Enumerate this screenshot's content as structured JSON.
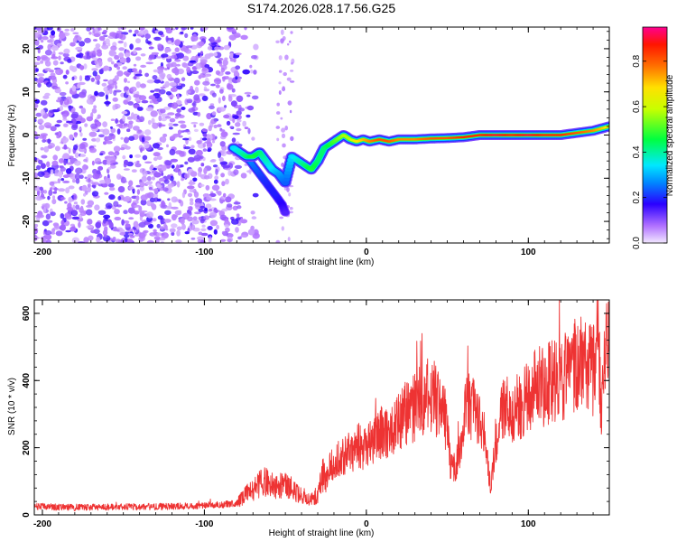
{
  "title": "S174.2026.028.17.56.G25",
  "chart_data": [
    {
      "type": "heatmap",
      "title": "S174.2026.028.17.56.G25",
      "xlabel": "Height of straight line (km)",
      "ylabel": "Frequency (Hz)",
      "xlim": [
        -205,
        150
      ],
      "ylim": [
        -25,
        25
      ],
      "xticks": [
        -200,
        -100,
        0,
        100
      ],
      "xtick_labels": [
        "-200",
        "-100",
        "0",
        "100"
      ],
      "yticks": [
        -20,
        -10,
        0,
        10,
        20
      ],
      "ytick_labels": [
        "-20",
        "-10",
        "0",
        "10",
        "20"
      ],
      "colorbar": {
        "label": "Normalized spectral amplitude",
        "range": [
          0.0,
          0.95
        ],
        "ticks": [
          0.0,
          0.2,
          0.4,
          0.6,
          0.8
        ],
        "tick_labels": [
          "0.0",
          "0.2",
          "0.4",
          "0.6",
          "0.8"
        ]
      },
      "noise_region_km": [
        -205,
        -78
      ],
      "signal_trace": {
        "x": [
          -82,
          -78,
          -74,
          -70,
          -66,
          -62,
          -58,
          -54,
          -50,
          -46,
          -42,
          -38,
          -34,
          -30,
          -26,
          -22,
          -18,
          -14,
          -10,
          -6,
          -2,
          2,
          8,
          14,
          20,
          30,
          40,
          50,
          60,
          70,
          80,
          90,
          100,
          110,
          120,
          130,
          140,
          150
        ],
        "y": [
          -3,
          -4,
          -5,
          -5,
          -4,
          -6,
          -8,
          -9,
          -11,
          -5,
          -6,
          -7,
          -8,
          -6,
          -3,
          -2,
          -1,
          0,
          -1,
          -1.5,
          -1,
          -1.5,
          -1,
          -1.5,
          -1,
          -1,
          -0.8,
          -0.7,
          -0.5,
          0,
          0,
          0,
          0,
          0,
          0,
          0.5,
          1,
          2
        ],
        "amplitude": [
          0.35,
          0.4,
          0.45,
          0.5,
          0.45,
          0.4,
          0.35,
          0.3,
          0.25,
          0.35,
          0.4,
          0.45,
          0.5,
          0.45,
          0.45,
          0.5,
          0.55,
          0.6,
          0.6,
          0.7,
          0.75,
          0.8,
          0.85,
          0.85,
          0.8,
          0.8,
          0.85,
          0.85,
          0.9,
          0.9,
          0.95,
          0.9,
          0.95,
          0.9,
          0.9,
          0.85,
          0.8,
          0.7
        ]
      },
      "branch_trace": {
        "x": [
          -80,
          -76,
          -72,
          -68,
          -64,
          -60,
          -56,
          -52,
          -50
        ],
        "y": [
          -3,
          -5,
          -6,
          -8,
          -10,
          -12,
          -14,
          -16,
          -18
        ],
        "amplitude": [
          0.3,
          0.3,
          0.28,
          0.25,
          0.22,
          0.2,
          0.2,
          0.18,
          0.15
        ]
      }
    },
    {
      "type": "line",
      "title": "",
      "xlabel": "Height of straight line (km)",
      "ylabel": "SNR (10 * v/v)",
      "xlim": [
        -205,
        150
      ],
      "ylim": [
        0,
        640
      ],
      "xticks": [
        -200,
        -100,
        0,
        100
      ],
      "xtick_labels": [
        "-200",
        "-100",
        "0",
        "100"
      ],
      "yticks": [
        0,
        200,
        400,
        600
      ],
      "ytick_labels": [
        "0",
        "200",
        "400",
        "600"
      ],
      "line_color": "#ee3333",
      "series": [
        {
          "name": "SNR",
          "x": [
            -205,
            -180,
            -150,
            -120,
            -100,
            -90,
            -80,
            -75,
            -70,
            -65,
            -60,
            -55,
            -50,
            -45,
            -40,
            -35,
            -30,
            -27,
            -25,
            -22,
            -20,
            -18,
            -15,
            -12,
            -10,
            -8,
            -5,
            -2,
            0,
            5,
            10,
            15,
            20,
            25,
            30,
            35,
            40,
            45,
            48,
            50,
            52,
            55,
            58,
            60,
            65,
            70,
            73,
            75,
            77,
            80,
            85,
            90,
            95,
            100,
            105,
            110,
            115,
            120,
            125,
            130,
            135,
            140,
            143,
            145,
            147,
            150
          ],
          "y": [
            25,
            22,
            24,
            25,
            28,
            30,
            35,
            60,
            75,
            95,
            100,
            80,
            90,
            70,
            60,
            50,
            50,
            120,
            100,
            150,
            140,
            160,
            170,
            180,
            200,
            180,
            210,
            190,
            200,
            230,
            250,
            240,
            280,
            300,
            320,
            350,
            360,
            330,
            300,
            250,
            150,
            140,
            200,
            300,
            330,
            280,
            200,
            150,
            80,
            230,
            320,
            310,
            330,
            360,
            380,
            380,
            400,
            410,
            420,
            450,
            450,
            420,
            550,
            300,
            450,
            550
          ]
        }
      ]
    }
  ]
}
